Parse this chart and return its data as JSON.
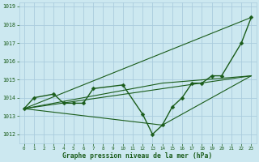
{
  "background_color": "#cce8f0",
  "grid_color": "#aaccdd",
  "line_color": "#1a5c1a",
  "title": "Graphe pression niveau de la mer (hPa)",
  "xlim": [
    -0.5,
    23.5
  ],
  "ylim": [
    1011.5,
    1019.2
  ],
  "yticks": [
    1012,
    1013,
    1014,
    1015,
    1016,
    1017,
    1018,
    1019
  ],
  "xticks": [
    0,
    1,
    2,
    3,
    4,
    5,
    6,
    7,
    8,
    9,
    10,
    11,
    12,
    13,
    14,
    15,
    16,
    17,
    18,
    19,
    20,
    21,
    22,
    23
  ],
  "marker_series": {
    "x": [
      0,
      1,
      3,
      4,
      5,
      6,
      7,
      10,
      12,
      13,
      14,
      15,
      16,
      17,
      18,
      19,
      20,
      22,
      23
    ],
    "y": [
      1013.4,
      1014.0,
      1014.2,
      1013.7,
      1013.7,
      1013.7,
      1014.5,
      1014.7,
      1013.1,
      1012.0,
      1012.5,
      1013.5,
      1014.0,
      1014.8,
      1014.8,
      1015.2,
      1015.2,
      1017.0,
      1018.4
    ]
  },
  "straight_lines": [
    {
      "x": [
        0,
        23
      ],
      "y": [
        1013.4,
        1018.4
      ]
    },
    {
      "x": [
        0,
        23
      ],
      "y": [
        1013.4,
        1015.2
      ]
    },
    {
      "x": [
        0,
        14,
        23
      ],
      "y": [
        1013.4,
        1014.8,
        1015.2
      ]
    },
    {
      "x": [
        0,
        14,
        23
      ],
      "y": [
        1013.4,
        1012.5,
        1015.2
      ]
    }
  ]
}
